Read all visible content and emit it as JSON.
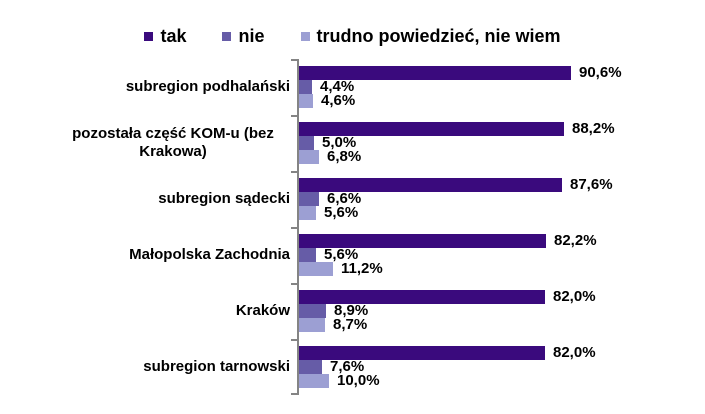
{
  "colors": {
    "tak": "#3A0A7D",
    "nie": "#665CA7",
    "trudno": "#9C9FD3",
    "axis": "#848484",
    "text": "#000000"
  },
  "legend": {
    "position": "top",
    "items": [
      {
        "label": "tak"
      },
      {
        "label": "nie"
      },
      {
        "label": "trudno powiedzieć, nie wiem"
      }
    ]
  },
  "chart_data": {
    "type": "bar",
    "orientation": "horizontal",
    "unit": "%",
    "decimal_separator": ",",
    "title": "",
    "xlabel": "",
    "ylabel": "",
    "xlim": [
      0,
      100
    ],
    "grid": false,
    "legend_position": "top",
    "categories": [
      "subregion podhalański",
      "pozostała część KOM-u (bez Krakowa)",
      "subregion sądecki",
      "Małopolska Zachodnia",
      "Kraków",
      "subregion tarnowski"
    ],
    "series": [
      {
        "name": "tak",
        "values": [
          90.6,
          88.2,
          87.6,
          82.2,
          82.0,
          82.0
        ]
      },
      {
        "name": "nie",
        "values": [
          4.4,
          5.0,
          6.6,
          5.6,
          8.9,
          7.6
        ]
      },
      {
        "name": "trudno powiedzieć, nie wiem",
        "values": [
          4.6,
          6.8,
          5.6,
          11.2,
          8.7,
          10.0
        ]
      }
    ],
    "value_labels": [
      [
        "90,6%",
        "4,4%",
        "4,6%"
      ],
      [
        "88,2%",
        "5,0%",
        "6,8%"
      ],
      [
        "87,6%",
        "6,6%",
        "5,6%"
      ],
      [
        "82,2%",
        "5,6%",
        "11,2%"
      ],
      [
        "82,0%",
        "8,9%",
        "8,7%"
      ],
      [
        "82,0%",
        "7,6%",
        "10,0%"
      ]
    ]
  }
}
